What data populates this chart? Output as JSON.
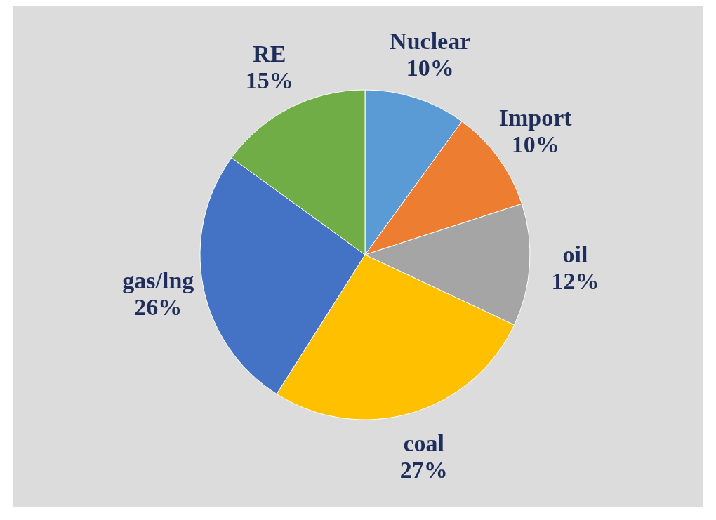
{
  "chart_data": {
    "type": "pie",
    "categories": [
      "Nuclear",
      "Import",
      "oil",
      "coal",
      "gas/lng",
      "RE"
    ],
    "values": [
      10,
      10,
      12,
      27,
      26,
      15
    ],
    "colors": [
      "#5b9bd5",
      "#ed7d31",
      "#a5a5a5",
      "#ffc000",
      "#4472c4",
      "#70ad47"
    ],
    "value_labels": [
      "10%",
      "10%",
      "12%",
      "27%",
      "26%",
      "15%"
    ]
  }
}
